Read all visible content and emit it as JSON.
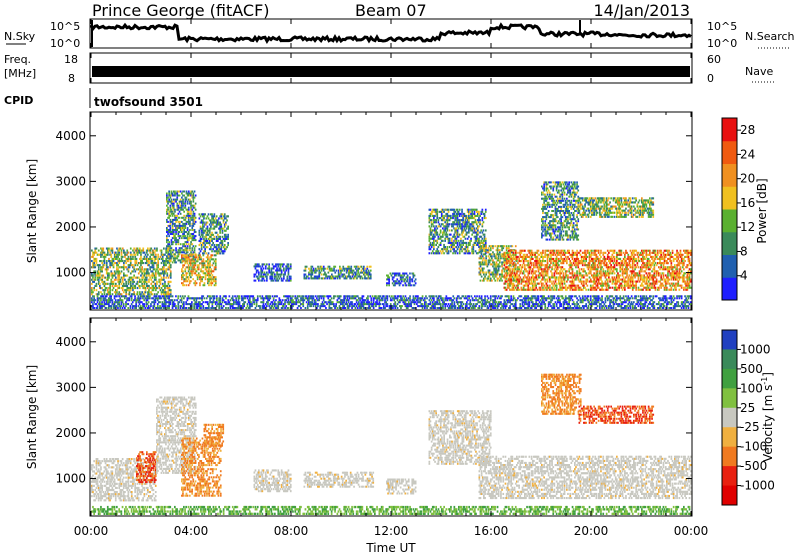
{
  "header": {
    "station": "Prince George (fitACF)",
    "beam": "Beam 07",
    "date": "14/Jan/2013"
  },
  "nsky_panel": {
    "left_label": "N.Sky",
    "right_label": "N.Search",
    "left_ticks": [
      "10^5",
      "10^0"
    ],
    "right_ticks": [
      "10^5",
      "10^0"
    ]
  },
  "freq_panel": {
    "left_label_line1": "Freq.",
    "left_label_line2": "[MHz]",
    "right_label": "Nave",
    "left_ticks": [
      "18",
      "8"
    ],
    "right_ticks": [
      "60",
      "0"
    ]
  },
  "cpid_panel": {
    "label": "CPID",
    "program": "twofsound 3501"
  },
  "x_axis": {
    "title": "Time UT",
    "ticks": [
      "00:00",
      "04:00",
      "08:00",
      "12:00",
      "16:00",
      "20:00",
      "00:00"
    ]
  },
  "colors": {
    "power": [
      "#1f1fff",
      "#2060b0",
      "#3a8a5a",
      "#5ab030",
      "#f0c020",
      "#f09020",
      "#f05a10",
      "#e81010"
    ],
    "velocity_gray": "#c8c8c0"
  },
  "chart_data": [
    {
      "type": "heatmap",
      "name": "power",
      "ylabel": "Slant Range [km]",
      "ylim": [
        200,
        4500
      ],
      "yticks": [
        1000,
        2000,
        3000,
        4000
      ],
      "xlim_hours": [
        0,
        24
      ],
      "colorbar": {
        "label": "Power [dB]",
        "ticks": [
          28,
          24,
          20,
          16,
          12,
          8,
          4
        ],
        "range": [
          0,
          30
        ]
      },
      "echo_regions": [
        {
          "t0": 0.0,
          "t1": 3.2,
          "r0": 500,
          "r1": 1550,
          "level": 16
        },
        {
          "t0": 3.0,
          "t1": 4.2,
          "r0": 1200,
          "r1": 2800,
          "level": 10
        },
        {
          "t0": 3.6,
          "t1": 5.0,
          "r0": 700,
          "r1": 1400,
          "level": 20
        },
        {
          "t0": 4.3,
          "t1": 5.5,
          "r0": 1400,
          "r1": 2300,
          "level": 12
        },
        {
          "t0": 6.5,
          "t1": 8.0,
          "r0": 800,
          "r1": 1200,
          "level": 8
        },
        {
          "t0": 8.5,
          "t1": 11.2,
          "r0": 850,
          "r1": 1150,
          "level": 10
        },
        {
          "t0": 11.8,
          "t1": 13.0,
          "r0": 700,
          "r1": 1000,
          "level": 6
        },
        {
          "t0": 13.5,
          "t1": 15.8,
          "r0": 1400,
          "r1": 2400,
          "level": 10
        },
        {
          "t0": 15.5,
          "t1": 17.0,
          "r0": 800,
          "r1": 1600,
          "level": 14
        },
        {
          "t0": 16.5,
          "t1": 24.0,
          "r0": 600,
          "r1": 1500,
          "level": 22
        },
        {
          "t0": 18.0,
          "t1": 19.5,
          "r0": 1700,
          "r1": 3000,
          "level": 12
        },
        {
          "t0": 19.5,
          "t1": 22.5,
          "r0": 2200,
          "r1": 2650,
          "level": 16
        },
        {
          "t0": 0.0,
          "t1": 24.0,
          "r0": 200,
          "r1": 500,
          "level": 6
        }
      ]
    },
    {
      "type": "heatmap",
      "name": "velocity",
      "ylabel": "Slant Range [km]",
      "ylim": [
        200,
        4500
      ],
      "yticks": [
        1000,
        2000,
        3000,
        4000
      ],
      "xlim_hours": [
        0,
        24
      ],
      "colorbar": {
        "label": "Velocity [m s-1]",
        "ticks": [
          "1000",
          "500",
          "100",
          "25",
          "-25",
          "-100",
          "-500",
          "-1000"
        ],
        "colors": [
          "#2040c0",
          "#3a8a5a",
          "#40a040",
          "#80c040",
          "#c8c8c0",
          "#f0b040",
          "#f07a20",
          "#e82010",
          "#e00000"
        ]
      },
      "echo_regions": [
        {
          "t0": 0.0,
          "t1": 2.6,
          "r0": 500,
          "r1": 1450,
          "v": 0
        },
        {
          "t0": 1.8,
          "t1": 2.6,
          "r0": 900,
          "r1": 1600,
          "v": -700
        },
        {
          "t0": 2.6,
          "t1": 4.2,
          "r0": 1100,
          "r1": 2800,
          "v": 0
        },
        {
          "t0": 3.6,
          "t1": 5.2,
          "r0": 600,
          "r1": 1900,
          "v": -300
        },
        {
          "t0": 4.5,
          "t1": 5.3,
          "r0": 1700,
          "r1": 2200,
          "v": -300
        },
        {
          "t0": 6.5,
          "t1": 8.0,
          "r0": 700,
          "r1": 1200,
          "v": 0
        },
        {
          "t0": 8.5,
          "t1": 11.3,
          "r0": 800,
          "r1": 1150,
          "v": 0
        },
        {
          "t0": 11.8,
          "t1": 13.0,
          "r0": 650,
          "r1": 1000,
          "v": 0
        },
        {
          "t0": 13.5,
          "t1": 16.0,
          "r0": 1300,
          "r1": 2500,
          "v": 0
        },
        {
          "t0": 15.5,
          "t1": 24.0,
          "r0": 550,
          "r1": 1500,
          "v": 0
        },
        {
          "t0": 18.0,
          "t1": 19.6,
          "r0": 2400,
          "r1": 3300,
          "v": -400
        },
        {
          "t0": 19.5,
          "t1": 22.5,
          "r0": 2200,
          "r1": 2600,
          "v": -600
        },
        {
          "t0": 0.0,
          "t1": 24.0,
          "r0": 200,
          "r1": 400,
          "v": 60
        }
      ]
    }
  ]
}
